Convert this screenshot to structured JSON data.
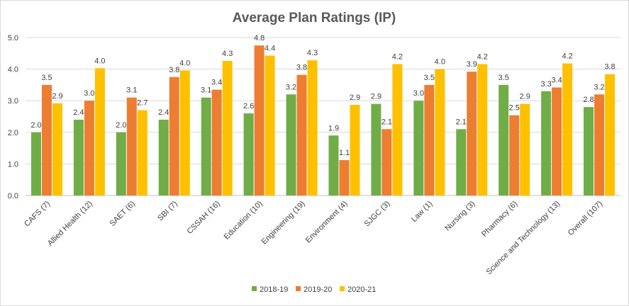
{
  "chart_data": {
    "type": "bar",
    "title": "Average Plan Ratings (IP)",
    "xlabel": "",
    "ylabel": "",
    "ylim": [
      0,
      5
    ],
    "yticks": [
      0,
      1,
      2,
      3,
      4,
      5
    ],
    "ytick_labels": [
      "0.0",
      "1.0",
      "2.0",
      "3.0",
      "4.0",
      "5.0"
    ],
    "grid": true,
    "legend_position": "bottom",
    "categories": [
      "CAFS (7)",
      "Allied Health (12)",
      "SAET (6)",
      "SBI (7)",
      "CSSAH (16)",
      "Education (10)",
      "Engineering (19)",
      "Environment (4)",
      "SJGC (3)",
      "Law (1)",
      "Nursing (3)",
      "Pharmacy (6)",
      "Science and Technology (13)",
      "Overall (107)"
    ],
    "series": [
      {
        "name": "2018-19",
        "color": "#70ad47",
        "values": [
          2.0,
          2.4,
          2.0,
          2.4,
          3.1,
          2.6,
          3.2,
          1.9,
          2.9,
          3.0,
          2.1,
          3.5,
          3.3,
          2.8
        ],
        "labels": [
          "2.0",
          "2.4",
          "2.0",
          "2.4",
          "3.1",
          "2.6",
          "3.2",
          "1.9",
          "2.9",
          "3.0",
          "2.1",
          "3.5",
          "3.3",
          "2.8"
        ]
      },
      {
        "name": "2019-20",
        "color": "#ed7d31",
        "values": [
          3.5,
          3.0,
          3.1,
          3.75,
          3.35,
          4.75,
          3.82,
          1.12,
          2.1,
          3.5,
          3.92,
          2.54,
          3.42,
          3.2
        ],
        "labels": [
          "3.5",
          "3.0",
          "3.1",
          "3.8",
          "3.4",
          "4.8",
          "3.8",
          "1.1",
          "2.1",
          "3.5",
          "3.9",
          "2.5",
          "3.4",
          "3.2"
        ]
      },
      {
        "name": "2020-21",
        "color": "#ffc000",
        "values": [
          2.92,
          4.03,
          2.7,
          3.96,
          4.26,
          4.43,
          4.28,
          2.87,
          4.16,
          4.0,
          4.16,
          2.9,
          4.18,
          3.84
        ],
        "labels": [
          "2.9",
          "4.0",
          "2.7",
          "4.0",
          "4.3",
          "4.4",
          "4.3",
          "2.9",
          "4.2",
          "4.0",
          "4.2",
          "2.9",
          "4.2",
          "3.8"
        ]
      }
    ]
  }
}
